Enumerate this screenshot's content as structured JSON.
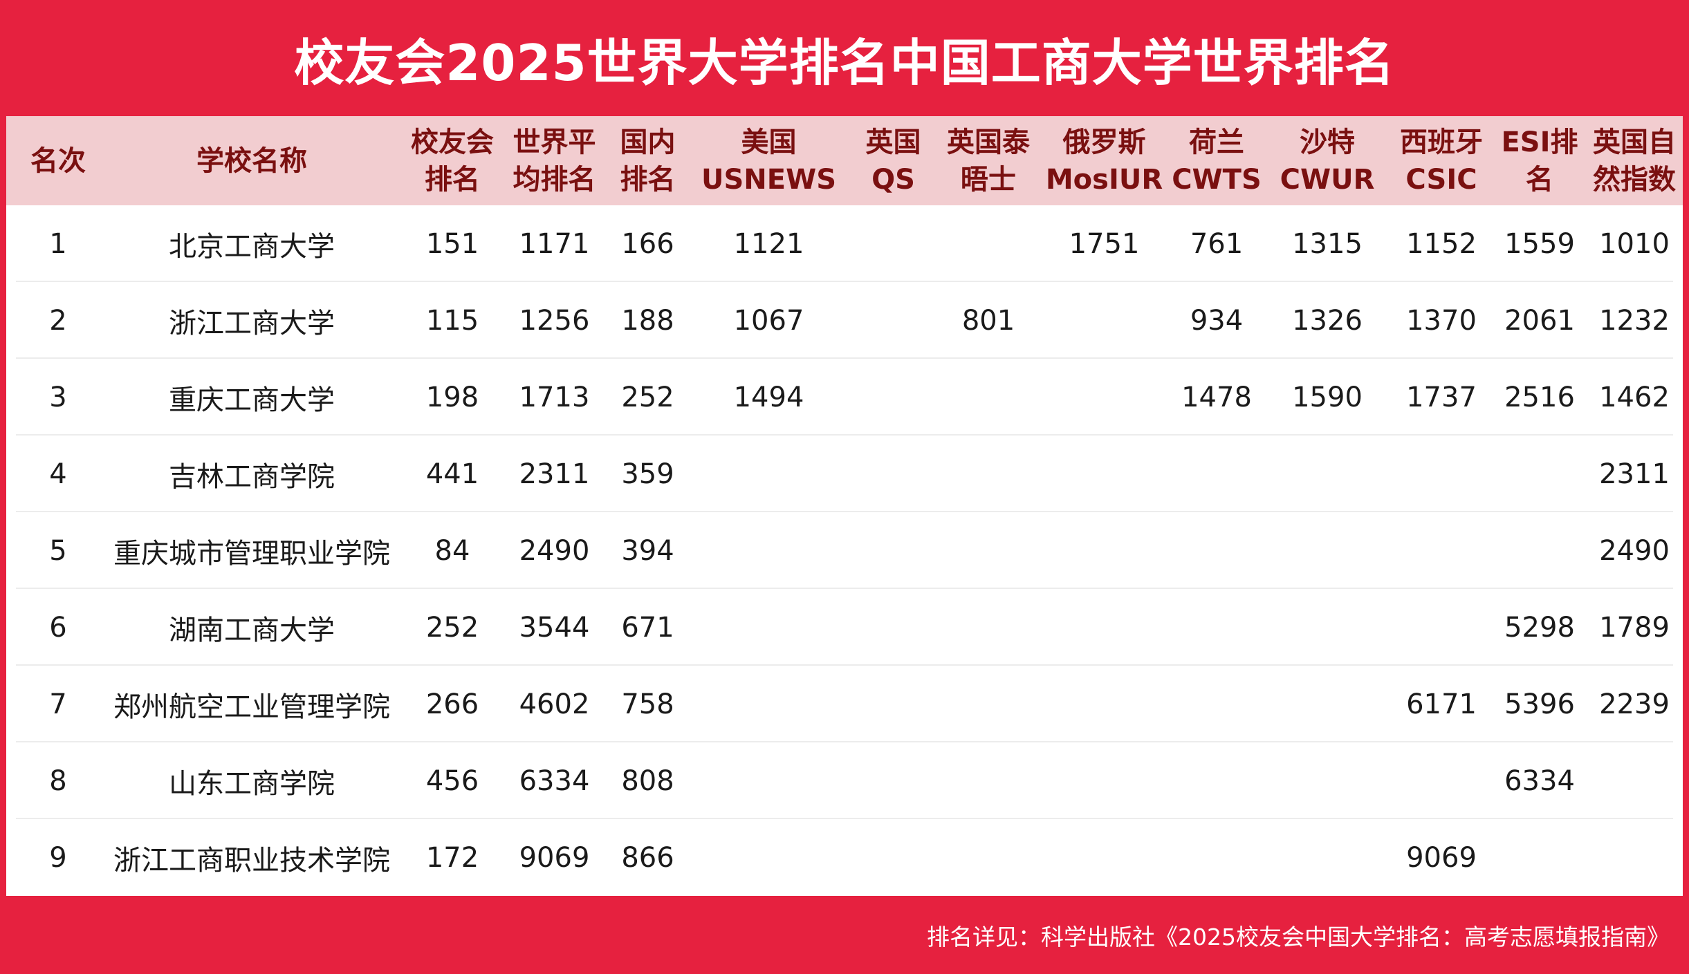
{
  "title": "校友会2025世界大学排名中国工商大学世界排名",
  "headers": [
    "名次",
    "学校名称",
    "校友会\n排名",
    "世界平\n均排名",
    "国内\n排名",
    "美国\nUSNEWS",
    "英国\nQS",
    "英国泰\n晤士",
    "俄罗斯\nMosIUR",
    "荷兰\nCWTS",
    "沙特\nCWUR",
    "西班牙\nCSIC",
    "ESI排\n名",
    "英国自\n然指数"
  ],
  "rows": [
    [
      "1",
      "北京工商大学",
      "151",
      "1171",
      "166",
      "1121",
      "",
      "",
      "1751",
      "761",
      "1315",
      "1152",
      "1559",
      "1010"
    ],
    [
      "2",
      "浙江工商大学",
      "115",
      "1256",
      "188",
      "1067",
      "",
      "801",
      "",
      "934",
      "1326",
      "1370",
      "2061",
      "1232"
    ],
    [
      "3",
      "重庆工商大学",
      "198",
      "1713",
      "252",
      "1494",
      "",
      "",
      "",
      "1478",
      "1590",
      "1737",
      "2516",
      "1462"
    ],
    [
      "4",
      "吉林工商学院",
      "441",
      "2311",
      "359",
      "",
      "",
      "",
      "",
      "",
      "",
      "",
      "",
      "2311"
    ],
    [
      "5",
      "重庆城市管理职业学院",
      "84",
      "2490",
      "394",
      "",
      "",
      "",
      "",
      "",
      "",
      "",
      "",
      "2490"
    ],
    [
      "6",
      "湖南工商大学",
      "252",
      "3544",
      "671",
      "",
      "",
      "",
      "",
      "",
      "",
      "",
      "5298",
      "1789"
    ],
    [
      "7",
      "郑州航空工业管理学院",
      "266",
      "4602",
      "758",
      "",
      "",
      "",
      "",
      "",
      "",
      "6171",
      "5396",
      "2239"
    ],
    [
      "8",
      "山东工商学院",
      "456",
      "6334",
      "808",
      "",
      "",
      "",
      "",
      "",
      "",
      "",
      "6334",
      ""
    ],
    [
      "9",
      "浙江工商职业技术学院",
      "172",
      "9069",
      "866",
      "",
      "",
      "",
      "",
      "",
      "",
      "9069",
      "",
      ""
    ]
  ],
  "footer": "排名详见：科学出版社《2025校友会中国大学排名：高考志愿填报指南》",
  "colors": {
    "brand_red": "#e6213f",
    "header_bg": "#f2cdd0",
    "header_text": "#7a1010"
  }
}
